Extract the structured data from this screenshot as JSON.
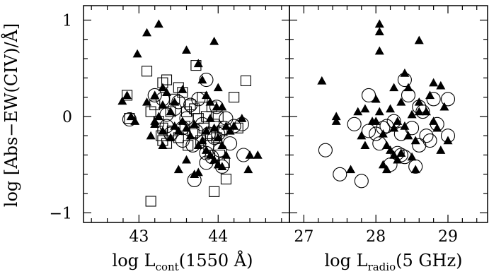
{
  "chart_data": [
    {
      "type": "scatter",
      "panel": "left",
      "xlabel_parts": {
        "pre": "log L",
        "sub": "cont",
        "post": "(1550 Å)"
      },
      "ylabel": "log [Abs−EW(CIV)/Å]",
      "xlim": [
        42.3,
        44.9
      ],
      "ylim": [
        -1.1,
        1.15
      ],
      "xticks": [
        43,
        44
      ],
      "xtick_labels": [
        "43",
        "44"
      ],
      "yticks": [
        1,
        0,
        -1
      ],
      "ytick_labels": [
        "1",
        "0",
        "−1"
      ],
      "series": [
        {
          "marker": "triangle",
          "points": [
            [
              42.79,
              0.16
            ],
            [
              42.85,
              0.22
            ],
            [
              42.98,
              0.65
            ],
            [
              43.1,
              0.87
            ],
            [
              43.25,
              0.96
            ],
            [
              42.9,
              0.0
            ],
            [
              42.95,
              -0.05
            ],
            [
              43.1,
              0.15
            ],
            [
              43.2,
              0.22
            ],
            [
              43.3,
              0.12
            ],
            [
              43.35,
              0.25
            ],
            [
              43.4,
              0.05
            ],
            [
              43.45,
              0.15
            ],
            [
              43.55,
              0.28
            ],
            [
              43.6,
              0.69
            ],
            [
              43.75,
              0.55
            ],
            [
              43.95,
              0.78
            ],
            [
              43.8,
              0.38
            ],
            [
              43.85,
              0.22
            ],
            [
              43.9,
              0.15
            ],
            [
              44.0,
              0.3
            ],
            [
              44.05,
              0.1
            ],
            [
              43.98,
              0.1
            ],
            [
              43.2,
              -0.08
            ],
            [
              43.3,
              -0.15
            ],
            [
              43.3,
              -0.3
            ],
            [
              43.4,
              -0.22
            ],
            [
              43.45,
              -0.1
            ],
            [
              43.5,
              -0.15
            ],
            [
              43.55,
              -0.05
            ],
            [
              43.6,
              -0.12
            ],
            [
              43.65,
              -0.2
            ],
            [
              43.7,
              -0.08
            ],
            [
              43.75,
              -0.3
            ],
            [
              43.8,
              -0.25
            ],
            [
              43.85,
              -0.15
            ],
            [
              43.9,
              -0.02
            ],
            [
              43.95,
              -0.12
            ],
            [
              44.0,
              -0.22
            ],
            [
              44.05,
              -0.3
            ],
            [
              44.1,
              -0.1
            ],
            [
              43.5,
              -0.55
            ],
            [
              43.6,
              -0.45
            ],
            [
              43.7,
              -0.6
            ],
            [
              43.75,
              -0.58
            ],
            [
              43.85,
              -0.35
            ],
            [
              43.9,
              -0.4
            ],
            [
              43.95,
              -0.45
            ],
            [
              44.0,
              -0.5
            ],
            [
              44.05,
              -0.52
            ],
            [
              44.1,
              -0.4
            ],
            [
              44.15,
              -0.15
            ],
            [
              44.2,
              -0.1
            ],
            [
              44.3,
              -0.02
            ],
            [
              44.38,
              -0.55
            ],
            [
              44.4,
              -0.4
            ],
            [
              44.5,
              -0.4
            ],
            [
              43.2,
              -0.05
            ],
            [
              43.25,
              0.0
            ],
            [
              43.15,
              -0.2
            ],
            [
              43.3,
              0.3
            ]
          ]
        },
        {
          "marker": "circle",
          "points": [
            [
              42.88,
              -0.03
            ],
            [
              43.2,
              0.22
            ],
            [
              43.3,
              0.18
            ],
            [
              43.35,
              -0.1
            ],
            [
              43.4,
              -0.18
            ],
            [
              43.45,
              0.08
            ],
            [
              43.5,
              0.15
            ],
            [
              43.55,
              -0.12
            ],
            [
              43.6,
              -0.02
            ],
            [
              43.65,
              0.12
            ],
            [
              43.68,
              -0.3
            ],
            [
              43.72,
              -0.15
            ],
            [
              43.75,
              0.18
            ],
            [
              43.8,
              -0.08
            ],
            [
              43.85,
              -0.38
            ],
            [
              43.88,
              -0.18
            ],
            [
              43.92,
              -0.42
            ],
            [
              43.95,
              -0.22
            ],
            [
              43.98,
              0.1
            ],
            [
              44.02,
              -0.35
            ],
            [
              44.05,
              -0.52
            ],
            [
              44.08,
              -0.12
            ],
            [
              44.1,
              -0.02
            ],
            [
              44.15,
              -0.28
            ],
            [
              44.2,
              -0.1
            ],
            [
              44.3,
              -0.08
            ],
            [
              44.32,
              -0.4
            ],
            [
              43.7,
              -0.66
            ],
            [
              43.85,
              0.38
            ],
            [
              43.85,
              -0.48
            ],
            [
              44.0,
              -0.18
            ],
            [
              43.55,
              -0.25
            ],
            [
              43.35,
              0.02
            ]
          ]
        },
        {
          "marker": "square",
          "points": [
            [
              42.85,
              0.22
            ],
            [
              42.88,
              -0.02
            ],
            [
              43.1,
              0.47
            ],
            [
              43.15,
              0.05
            ],
            [
              43.2,
              0.12
            ],
            [
              43.25,
              -0.05
            ],
            [
              43.28,
              -0.2
            ],
            [
              43.3,
              0.35
            ],
            [
              43.3,
              -0.12
            ],
            [
              43.35,
              -0.28
            ],
            [
              43.4,
              0.05
            ],
            [
              43.42,
              -0.15
            ],
            [
              43.45,
              0.18
            ],
            [
              43.5,
              -0.22
            ],
            [
              43.55,
              0.25
            ],
            [
              43.58,
              -0.1
            ],
            [
              43.6,
              0.05
            ],
            [
              43.62,
              -0.3
            ],
            [
              43.65,
              0.12
            ],
            [
              43.68,
              -0.18
            ],
            [
              43.7,
              0.08
            ],
            [
              43.72,
              0.53
            ],
            [
              43.75,
              -0.02
            ],
            [
              43.78,
              -0.25
            ],
            [
              43.8,
              0.2
            ],
            [
              43.82,
              -0.12
            ],
            [
              43.85,
              0.0
            ],
            [
              43.88,
              -0.3
            ],
            [
              43.9,
              -0.18
            ],
            [
              43.92,
              0.1
            ],
            [
              43.95,
              -0.08
            ],
            [
              43.98,
              -0.22
            ],
            [
              44.0,
              0.0
            ],
            [
              44.02,
              -0.4
            ],
            [
              44.05,
              -0.15
            ],
            [
              44.08,
              -0.48
            ],
            [
              44.1,
              -0.65
            ],
            [
              43.95,
              -0.78
            ],
            [
              43.15,
              -0.88
            ],
            [
              44.2,
              0.2
            ],
            [
              44.25,
              -0.12
            ],
            [
              44.35,
              0.37
            ],
            [
              43.35,
              0.38
            ],
            [
              43.5,
              0.3
            ],
            [
              43.3,
              -0.25
            ]
          ]
        }
      ]
    },
    {
      "type": "scatter",
      "panel": "right",
      "xlabel_parts": {
        "pre": "log L",
        "sub": "radio",
        "post": "(5 GHz)"
      },
      "xlim": [
        26.8,
        29.55
      ],
      "ylim": [
        -1.1,
        1.15
      ],
      "xticks": [
        27,
        28,
        29
      ],
      "xtick_labels": [
        "27",
        "28",
        "29"
      ],
      "series": [
        {
          "marker": "triangle",
          "points": [
            [
              28.05,
              0.96
            ],
            [
              28.05,
              0.88
            ],
            [
              28.05,
              0.68
            ],
            [
              28.6,
              0.79
            ],
            [
              27.25,
              0.37
            ],
            [
              27.45,
              0.0
            ],
            [
              27.45,
              -0.05
            ],
            [
              27.75,
              0.05
            ],
            [
              27.8,
              -0.2
            ],
            [
              27.85,
              0.08
            ],
            [
              27.95,
              -0.05
            ],
            [
              28.0,
              0.18
            ],
            [
              28.05,
              0.05
            ],
            [
              28.1,
              -0.18
            ],
            [
              28.15,
              -0.3
            ],
            [
              28.2,
              0.08
            ],
            [
              28.25,
              0.3
            ],
            [
              28.3,
              -0.05
            ],
            [
              28.35,
              0.15
            ],
            [
              28.4,
              -0.1
            ],
            [
              28.45,
              -0.2
            ],
            [
              28.5,
              0.02
            ],
            [
              28.55,
              -0.25
            ],
            [
              28.6,
              0.15
            ],
            [
              28.7,
              0.05
            ],
            [
              28.75,
              0.22
            ],
            [
              28.8,
              -0.05
            ],
            [
              28.85,
              -0.12
            ],
            [
              28.9,
              0.32
            ],
            [
              28.95,
              0.1
            ],
            [
              29.0,
              -0.25
            ],
            [
              28.4,
              0.45
            ],
            [
              28.45,
              0.3
            ],
            [
              28.1,
              -0.5
            ],
            [
              28.15,
              -0.55
            ],
            [
              28.2,
              -0.35
            ],
            [
              28.25,
              -0.4
            ],
            [
              28.3,
              -0.45
            ],
            [
              28.35,
              -0.38
            ],
            [
              28.5,
              -0.42
            ],
            [
              28.55,
              -0.55
            ],
            [
              28.9,
              -0.35
            ],
            [
              27.65,
              -0.55
            ],
            [
              28.8,
              0.35
            ],
            [
              28.6,
              0.05
            ],
            [
              28.0,
              -0.05
            ],
            [
              27.85,
              -0.3
            ],
            [
              28.25,
              -0.12
            ]
          ]
        },
        {
          "marker": "circle",
          "points": [
            [
              27.3,
              -0.35
            ],
            [
              27.5,
              -0.6
            ],
            [
              27.8,
              -0.67
            ],
            [
              27.7,
              -0.08
            ],
            [
              27.9,
              0.22
            ],
            [
              27.9,
              -0.15
            ],
            [
              28.0,
              -0.18
            ],
            [
              28.05,
              -0.28
            ],
            [
              28.1,
              -0.12
            ],
            [
              28.15,
              -0.1
            ],
            [
              28.2,
              -0.5
            ],
            [
              28.3,
              -0.38
            ],
            [
              28.35,
              -0.4
            ],
            [
              28.4,
              -0.42
            ],
            [
              28.35,
              -0.18
            ],
            [
              28.4,
              0.38
            ],
            [
              28.45,
              0.22
            ],
            [
              28.5,
              -0.12
            ],
            [
              28.55,
              -0.52
            ],
            [
              28.6,
              -0.3
            ],
            [
              28.6,
              0.1
            ],
            [
              28.65,
              0.05
            ],
            [
              28.7,
              -0.2
            ],
            [
              28.75,
              -0.25
            ],
            [
              28.8,
              0.18
            ],
            [
              28.85,
              -0.08
            ],
            [
              29.0,
              0.18
            ],
            [
              29.0,
              -0.2
            ],
            [
              28.25,
              -0.05
            ]
          ]
        }
      ]
    }
  ]
}
